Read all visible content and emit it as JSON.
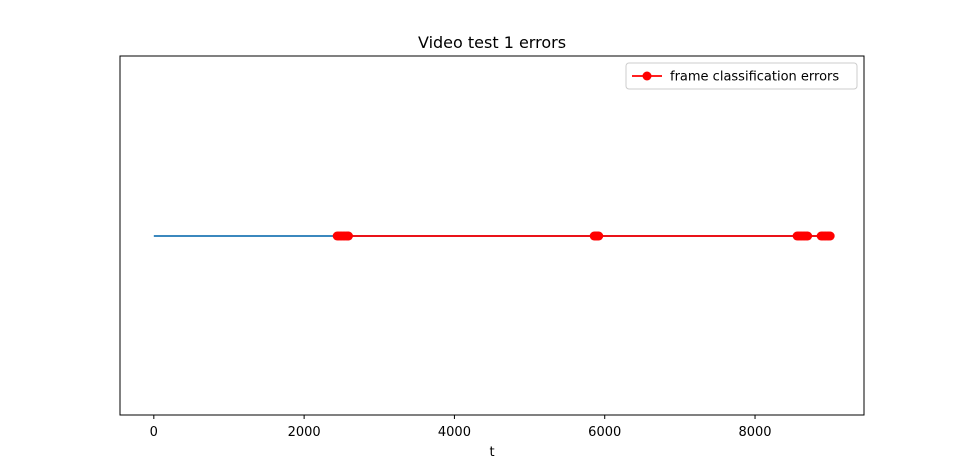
{
  "chart_data": {
    "type": "line",
    "title": "Video test 1 errors",
    "xlabel": "t",
    "ylabel": "",
    "xlim": [
      -450,
      9450
    ],
    "x_ticks": [
      0,
      2000,
      4000,
      6000,
      8000
    ],
    "x_tick_labels": [
      "0",
      "2000",
      "4000",
      "6000",
      "8000"
    ],
    "y_ticks_visible": false,
    "grid": false,
    "legend": {
      "position": "top-right",
      "entries": [
        "frame classification errors"
      ]
    },
    "series": [
      {
        "role": "baseline",
        "color": "#1f77b4",
        "marker": "none",
        "x_range": [
          0,
          9000
        ]
      },
      {
        "name": "frame classification errors",
        "color": "#ff0000",
        "marker": "circle",
        "x": [
          2440,
          2460,
          2480,
          2500,
          2520,
          2540,
          2560,
          2580,
          2590,
          5860,
          5875,
          5890,
          5905,
          5920,
          8560,
          8580,
          8600,
          8620,
          8640,
          8660,
          8680,
          8700,
          8880,
          8900,
          8920,
          8940,
          8960,
          8980,
          9000
        ]
      }
    ]
  }
}
